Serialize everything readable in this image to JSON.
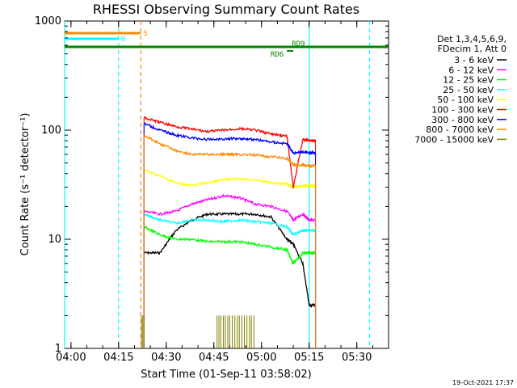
{
  "chart_data": {
    "type": "line",
    "title": "RHESSI Observing Summary Count Rates",
    "xlabel": "Start Time (01-Sep-11 03:58:02)",
    "ylabel": "Count Rate (s⁻¹ detector⁻¹)",
    "x_unit": "minutes after 03:58:02",
    "xlim": [
      0,
      102
    ],
    "ylim": [
      1,
      1000
    ],
    "yscale": "log",
    "x_ticks": [
      {
        "label": "04:00",
        "x": 2
      },
      {
        "label": "04:15",
        "x": 17
      },
      {
        "label": "04:30",
        "x": 32
      },
      {
        "label": "04:45",
        "x": 47
      },
      {
        "label": "05:00",
        "x": 62
      },
      {
        "label": "05:15",
        "x": 77
      },
      {
        "label": "05:30",
        "x": 92
      }
    ],
    "y_ticks": [
      {
        "label": "1",
        "y": 1
      },
      {
        "label": "10",
        "y": 10
      },
      {
        "label": "100",
        "y": 100
      },
      {
        "label": "1000",
        "y": 1000
      }
    ],
    "legend_header": [
      "Det 1,3,4,5,6,9,",
      "FDecim 1, Att 0"
    ],
    "legend_position": "right",
    "series": [
      {
        "name": "3 - 6 keV",
        "color": "#000000",
        "x": [
          25,
          30,
          35,
          40,
          45,
          50,
          55,
          60,
          65,
          70,
          72,
          75,
          77,
          79
        ],
        "y": [
          7.5,
          7.5,
          12,
          15,
          17,
          17,
          17,
          17,
          16,
          10,
          9,
          6,
          2.5,
          2.5
        ]
      },
      {
        "name": "6 - 12 keV",
        "color": "#ff00ff",
        "x": [
          25,
          30,
          35,
          40,
          45,
          50,
          55,
          60,
          65,
          70,
          72,
          75,
          77,
          79
        ],
        "y": [
          18,
          17,
          18,
          21,
          23,
          25,
          24,
          21,
          20,
          18,
          15,
          17,
          15,
          15
        ]
      },
      {
        "name": "12 - 25 keV",
        "color": "#00ff00",
        "x": [
          25,
          30,
          35,
          40,
          45,
          50,
          55,
          60,
          65,
          70,
          72,
          75,
          77,
          79
        ],
        "y": [
          13,
          11,
          10,
          10,
          9.5,
          9.5,
          9.5,
          9,
          8.5,
          8,
          6,
          7.5,
          7.5,
          7.5
        ]
      },
      {
        "name": "25 - 50 keV",
        "color": "#00ffff",
        "x": [
          25,
          30,
          35,
          40,
          45,
          50,
          55,
          60,
          65,
          70,
          72,
          75,
          77,
          79
        ],
        "y": [
          17,
          15,
          14,
          15,
          15,
          14.5,
          15,
          14.5,
          14,
          13,
          11,
          12,
          12,
          12
        ]
      },
      {
        "name": "50 - 100 keV",
        "color": "#ffff00",
        "x": [
          25,
          30,
          35,
          40,
          45,
          50,
          55,
          60,
          65,
          70,
          72,
          75,
          77,
          79
        ],
        "y": [
          43,
          38,
          33,
          31,
          33,
          35,
          36,
          35,
          33,
          32,
          30,
          31,
          31,
          31
        ]
      },
      {
        "name": "100 - 300 keV",
        "color": "#ff0000",
        "x": [
          25,
          30,
          35,
          40,
          45,
          50,
          55,
          60,
          65,
          70,
          72,
          75,
          77,
          79
        ],
        "y": [
          130,
          118,
          108,
          102,
          97,
          100,
          103,
          100,
          92,
          88,
          30,
          82,
          81,
          80
        ]
      },
      {
        "name": "300 - 800 keV",
        "color": "#0000ff",
        "x": [
          25,
          30,
          35,
          40,
          45,
          50,
          55,
          60,
          65,
          70,
          72,
          75,
          77,
          79
        ],
        "y": [
          115,
          100,
          90,
          85,
          82,
          83,
          84,
          82,
          78,
          75,
          62,
          63,
          62,
          62
        ]
      },
      {
        "name": "800 - 7000 keV",
        "color": "#ff8800",
        "x": [
          25,
          30,
          35,
          40,
          45,
          50,
          55,
          60,
          65,
          70,
          72,
          75,
          77,
          79
        ],
        "y": [
          90,
          75,
          65,
          60,
          60,
          60,
          60,
          59,
          57,
          55,
          48,
          48,
          47,
          47
        ]
      },
      {
        "name": "7000 - 15000 keV",
        "color": "#808000",
        "x": [],
        "y": []
      }
    ],
    "flags": [
      {
        "label": "S",
        "color": "#ff8800",
        "x_start": 0,
        "x_end": 24
      },
      {
        "label": "N",
        "color": "#00ffff",
        "x_start": 0,
        "x_end": 17
      },
      {
        "label": "RD9",
        "color": "#008800",
        "x_start": 0,
        "x_end": 102
      },
      {
        "label": "RD6",
        "color": "#008800",
        "x_start": 70,
        "x_end": 72
      }
    ],
    "vertical_markers": [
      {
        "x": 0,
        "color": "#00ffff",
        "style": "solid"
      },
      {
        "x": 17,
        "color": "#00ffff",
        "style": "dashed"
      },
      {
        "x": 24,
        "color": "#ff8800",
        "style": "dashed"
      },
      {
        "x": 77,
        "color": "#00ffff",
        "style": "solid"
      },
      {
        "x": 96,
        "color": "#00ffff",
        "style": "dashed"
      }
    ],
    "grid": false,
    "timestamp": "19-Oct-2021 17:37"
  }
}
